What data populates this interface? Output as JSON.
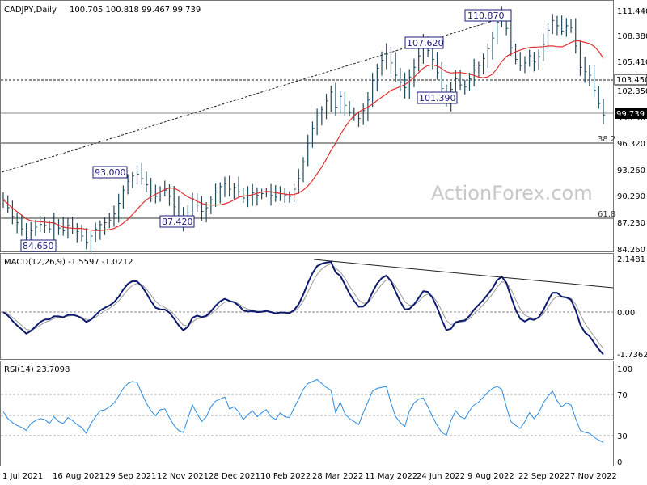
{
  "chart_data": [
    {
      "type": "candlestick",
      "title": "CADJPY,Daily",
      "ohlc_label": "100.705 100.818 99.467 99.739",
      "y_ticks": [
        "111.440",
        "108.380",
        "105.410",
        "102.350",
        "99.290",
        "96.320",
        "93.260",
        "90.290",
        "87.230",
        "84.260"
      ],
      "ylim": [
        84.26,
        111.44
      ],
      "series": [
        {
          "close": [
            90.1,
            89.2,
            88.2,
            87.5,
            86.8,
            85.8,
            86.6,
            87.0,
            87.3,
            87.2,
            86.8,
            87.4,
            86.9,
            86.6,
            87.2,
            86.9,
            86.5,
            86.0,
            85.2,
            86.0,
            86.8,
            87.3,
            87.5,
            87.8,
            88.5,
            89.7,
            91.2,
            92.2,
            92.8,
            93.0,
            92.5,
            91.8,
            91.0,
            90.5,
            91.0,
            91.2,
            90.5,
            89.3,
            88.2,
            87.5,
            88.6,
            90.2,
            89.5,
            88.8,
            89.2,
            90.1,
            91.0,
            91.6,
            91.9,
            91.3,
            91.5,
            91.0,
            90.3,
            90.6,
            90.9,
            90.6,
            90.8,
            91.0,
            90.6,
            90.4,
            90.8,
            90.6,
            90.5,
            91.3,
            92.5,
            94.4,
            96.5,
            98.2,
            99.6,
            100.3,
            101.3,
            102.3,
            100.6,
            101.8,
            100.8,
            100.0,
            99.7,
            99.3,
            100.2,
            101.4,
            103.6,
            105.0,
            105.9,
            106.6,
            105.6,
            104.2,
            103.4,
            102.8,
            104.0,
            105.1,
            106.4,
            107.6,
            107.0,
            106.0,
            104.5,
            102.7,
            101.4,
            102.6,
            103.8,
            103.1,
            102.9,
            103.8,
            104.8,
            105.3,
            106.1,
            107.2,
            108.4,
            110.2,
            110.8,
            109.5,
            107.3,
            106.0,
            105.3,
            105.6,
            106.4,
            105.7,
            106.3,
            107.7,
            109.3,
            110.4,
            109.8,
            109.2,
            109.8,
            109.6,
            107.5,
            105.1,
            104.6,
            104.2,
            102.5,
            101.0,
            99.7
          ]
        },
        {
          "name": "MA",
          "color": "#e03030"
        }
      ],
      "right_marks": [
        {
          "label": "103.450",
          "value": 103.45,
          "style": "dashed"
        },
        {
          "label": "99.739",
          "value": 99.739,
          "style": "solid"
        }
      ],
      "fib_levels": [
        {
          "label": "38.2",
          "value": 96.5
        },
        {
          "label": "61.8",
          "value": 87.6
        }
      ],
      "annotations": [
        "110.870",
        "107.620",
        "101.390",
        "93.000",
        "87.420",
        "84.650"
      ],
      "watermark": "ActionForex.com"
    },
    {
      "type": "line",
      "title": "MACD(12,26,9) -1.5597 -1.0212",
      "y_ticks": [
        "2.1481",
        "0.00",
        "-1.7362"
      ],
      "ylim": [
        -1.7362,
        2.1481
      ]
    },
    {
      "type": "line",
      "title": "RSI(14) 23.7098",
      "y_ticks": [
        "100",
        "70",
        "50",
        "30",
        "0"
      ],
      "ylim": [
        0,
        100
      ],
      "series": [
        {
          "values": [
            55,
            48,
            44,
            41,
            39,
            36,
            43,
            46,
            48,
            47,
            43,
            50,
            45,
            43,
            49,
            46,
            42,
            39,
            33,
            43,
            50,
            56,
            57,
            60,
            64,
            71,
            79,
            84,
            86,
            85,
            74,
            64,
            56,
            51,
            57,
            58,
            49,
            41,
            36,
            34,
            48,
            62,
            53,
            45,
            50,
            60,
            66,
            68,
            70,
            58,
            60,
            55,
            47,
            52,
            56,
            50,
            54,
            57,
            50,
            47,
            54,
            50,
            49,
            59,
            68,
            78,
            84,
            86,
            88,
            84,
            80,
            77,
            54,
            65,
            53,
            48,
            45,
            42,
            54,
            65,
            76,
            79,
            80,
            81,
            64,
            50,
            44,
            40,
            56,
            64,
            68,
            69,
            60,
            50,
            41,
            34,
            31,
            46,
            56,
            50,
            48,
            56,
            62,
            65,
            70,
            75,
            79,
            81,
            78,
            60,
            45,
            41,
            38,
            45,
            54,
            48,
            54,
            64,
            71,
            76,
            66,
            60,
            64,
            62,
            48,
            36,
            34,
            33,
            29,
            26,
            23.7
          ]
        }
      ]
    }
  ],
  "x_axis_labels": [
    "1 Jul 2021",
    "16 Aug 2021",
    "29 Sep 2021",
    "12 Nov 2021",
    "28 Dec 2021",
    "10 Feb 2022",
    "28 Mar 2022",
    "11 May 2022",
    "24 Jun 2022",
    "9 Aug 2022",
    "22 Sep 2022",
    "7 Nov 2022"
  ]
}
